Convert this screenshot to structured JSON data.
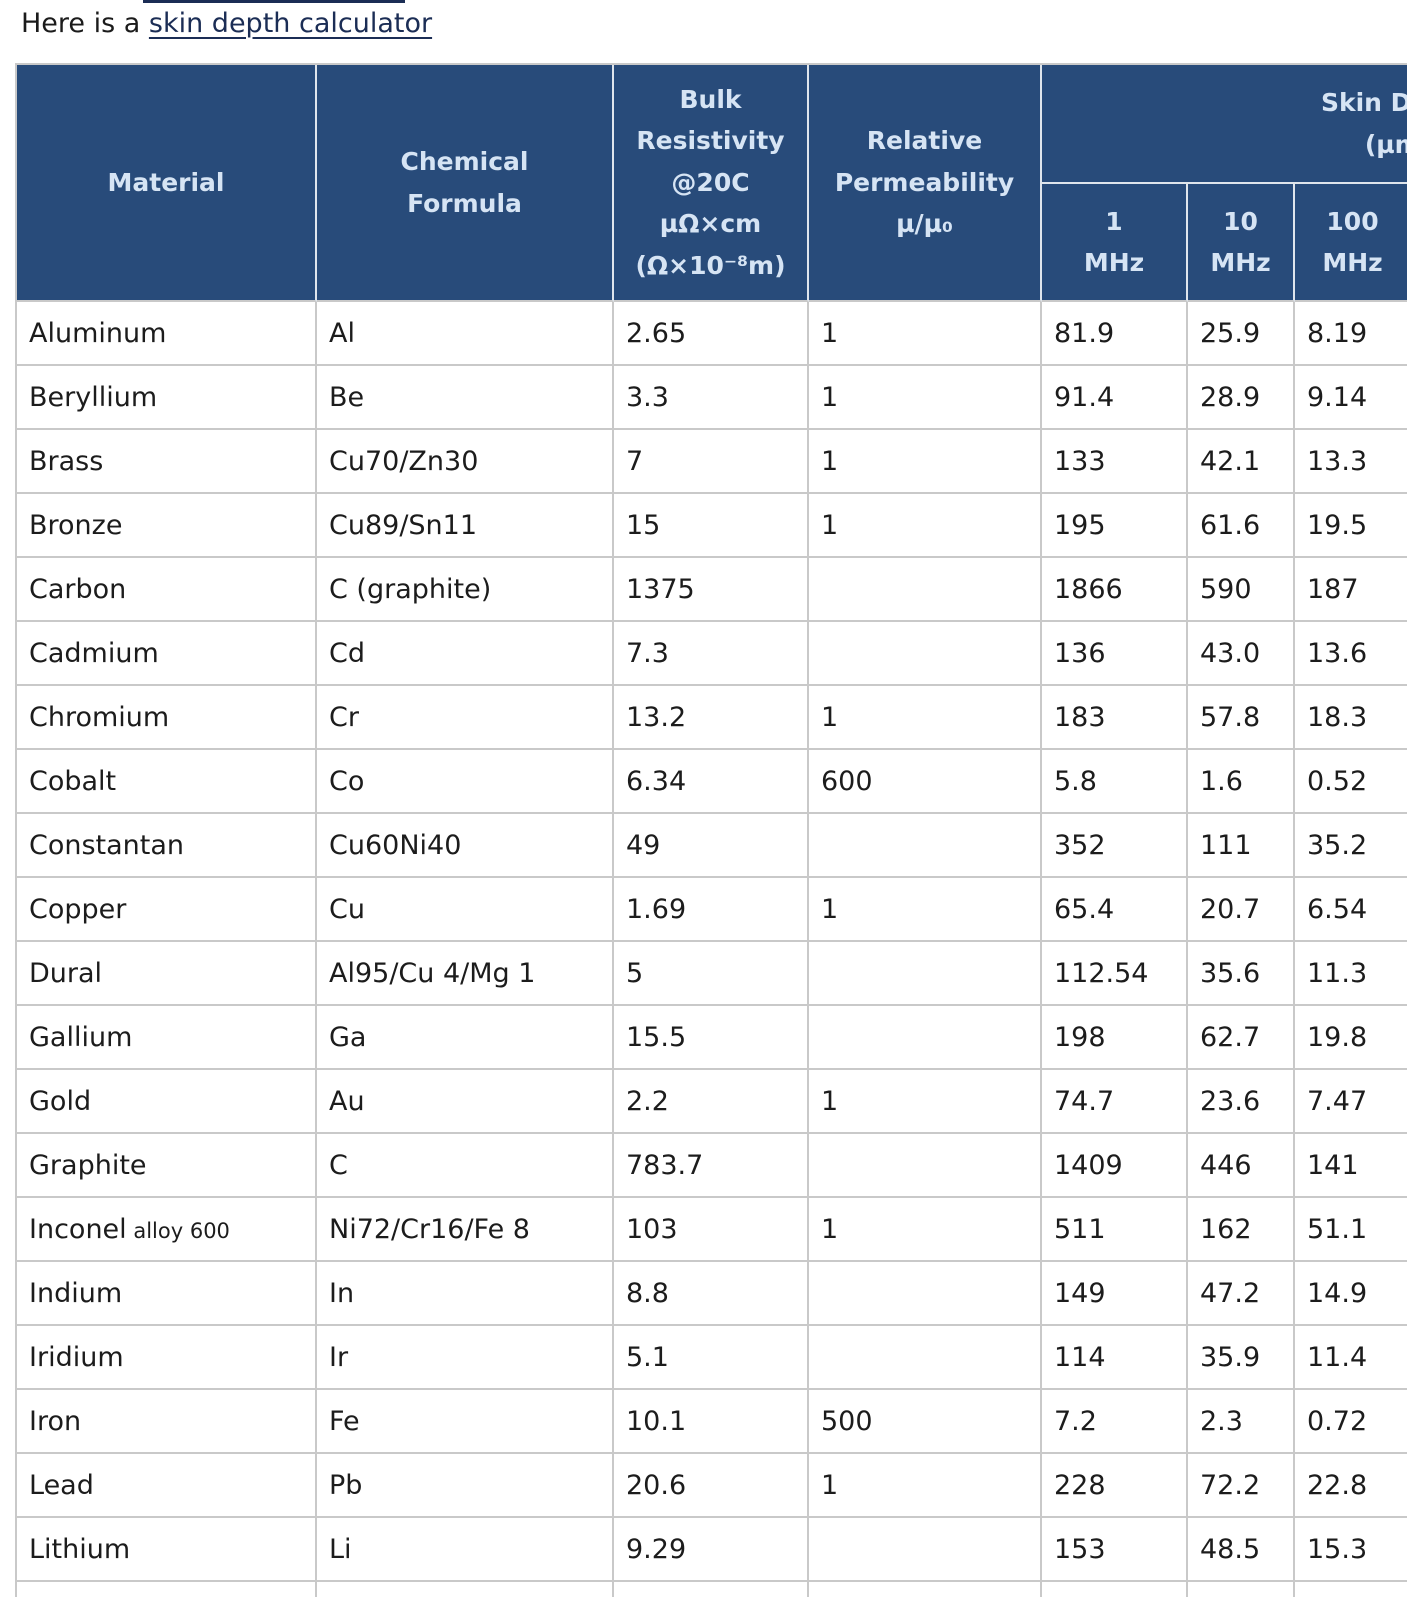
{
  "colors": {
    "link": "#1b2d55",
    "header_bg": "#284b7a",
    "header_text": "#d6e4f4"
  },
  "page": {
    "intro": {
      "prefix": "Here is a ",
      "link_text": "skin depth calculator"
    }
  },
  "table": {
    "headers": {
      "material": "Material",
      "chemical_formula": "Chemical\nFormula",
      "bulk_resistivity": "Bulk\nResistivity\n@20C\nµΩ×cm\n(Ω×10⁻⁸m)",
      "relative_permeability": "Relative\nPermeability\nµ/µ₀",
      "skin_depth_group": "Skin Depth\n(µm)",
      "freq": [
        "1\nMHz",
        "10\nMHz",
        "100\nMHz"
      ]
    },
    "rows": [
      {
        "material": "Aluminum",
        "note": "",
        "formula": "Al",
        "resistivity": "2.65",
        "permeability": "1",
        "skin_1mhz": "81.9",
        "skin_10mhz": "25.9",
        "skin_100mhz": "8.19"
      },
      {
        "material": "Beryllium",
        "note": "",
        "formula": "Be",
        "resistivity": "3.3",
        "permeability": "1",
        "skin_1mhz": "91.4",
        "skin_10mhz": "28.9",
        "skin_100mhz": "9.14"
      },
      {
        "material": "Brass",
        "note": "",
        "formula": "Cu70/Zn30",
        "resistivity": "7",
        "permeability": "1",
        "skin_1mhz": "133",
        "skin_10mhz": "42.1",
        "skin_100mhz": "13.3"
      },
      {
        "material": "Bronze",
        "note": "",
        "formula": "Cu89/Sn11",
        "resistivity": "15",
        "permeability": "1",
        "skin_1mhz": "195",
        "skin_10mhz": "61.6",
        "skin_100mhz": "19.5"
      },
      {
        "material": "Carbon",
        "note": "",
        "formula": "C (graphite)",
        "resistivity": "1375",
        "permeability": "",
        "skin_1mhz": "1866",
        "skin_10mhz": "590",
        "skin_100mhz": "187"
      },
      {
        "material": "Cadmium",
        "note": "",
        "formula": "Cd",
        "resistivity": "7.3",
        "permeability": "",
        "skin_1mhz": "136",
        "skin_10mhz": "43.0",
        "skin_100mhz": "13.6"
      },
      {
        "material": "Chromium",
        "note": "",
        "formula": "Cr",
        "resistivity": "13.2",
        "permeability": "1",
        "skin_1mhz": "183",
        "skin_10mhz": "57.8",
        "skin_100mhz": "18.3"
      },
      {
        "material": "Cobalt",
        "note": "",
        "formula": "Co",
        "resistivity": "6.34",
        "permeability": "600",
        "skin_1mhz": "5.8",
        "skin_10mhz": "1.6",
        "skin_100mhz": "0.52"
      },
      {
        "material": "Constantan",
        "note": "",
        "formula": "Cu60Ni40",
        "resistivity": "49",
        "permeability": "",
        "skin_1mhz": "352",
        "skin_10mhz": "111",
        "skin_100mhz": "35.2"
      },
      {
        "material": "Copper",
        "note": "",
        "formula": "Cu",
        "resistivity": "1.69",
        "permeability": "1",
        "skin_1mhz": "65.4",
        "skin_10mhz": "20.7",
        "skin_100mhz": "6.54"
      },
      {
        "material": "Dural",
        "note": "",
        "formula": "Al95/Cu 4/Mg 1",
        "resistivity": "5",
        "permeability": "",
        "skin_1mhz": "112.54",
        "skin_10mhz": "35.6",
        "skin_100mhz": "11.3"
      },
      {
        "material": "Gallium",
        "note": "",
        "formula": "Ga",
        "resistivity": "15.5",
        "permeability": "",
        "skin_1mhz": "198",
        "skin_10mhz": "62.7",
        "skin_100mhz": "19.8"
      },
      {
        "material": "Gold",
        "note": "",
        "formula": "Au",
        "resistivity": "2.2",
        "permeability": "1",
        "skin_1mhz": "74.7",
        "skin_10mhz": "23.6",
        "skin_100mhz": "7.47"
      },
      {
        "material": "Graphite",
        "note": "",
        "formula": "C",
        "resistivity": "783.7",
        "permeability": "",
        "skin_1mhz": "1409",
        "skin_10mhz": "446",
        "skin_100mhz": "141"
      },
      {
        "material": "Inconel",
        "note": "alloy 600",
        "formula": "Ni72/Cr16/Fe 8",
        "resistivity": "103",
        "permeability": "1",
        "skin_1mhz": "511",
        "skin_10mhz": "162",
        "skin_100mhz": "51.1"
      },
      {
        "material": "Indium",
        "note": "",
        "formula": "In",
        "resistivity": "8.8",
        "permeability": "",
        "skin_1mhz": "149",
        "skin_10mhz": "47.2",
        "skin_100mhz": "14.9"
      },
      {
        "material": "Iridium",
        "note": "",
        "formula": "Ir",
        "resistivity": "5.1",
        "permeability": "",
        "skin_1mhz": "114",
        "skin_10mhz": "35.9",
        "skin_100mhz": "11.4"
      },
      {
        "material": "Iron",
        "note": "",
        "formula": "Fe",
        "resistivity": "10.1",
        "permeability": "500",
        "skin_1mhz": "7.2",
        "skin_10mhz": "2.3",
        "skin_100mhz": "0.72"
      },
      {
        "material": "Lead",
        "note": "",
        "formula": "Pb",
        "resistivity": "20.6",
        "permeability": "1",
        "skin_1mhz": "228",
        "skin_10mhz": "72.2",
        "skin_100mhz": "22.8"
      },
      {
        "material": "Lithium",
        "note": "",
        "formula": "Li",
        "resistivity": "9.29",
        "permeability": "",
        "skin_1mhz": "153",
        "skin_10mhz": "48.5",
        "skin_100mhz": "15.3"
      }
    ]
  }
}
